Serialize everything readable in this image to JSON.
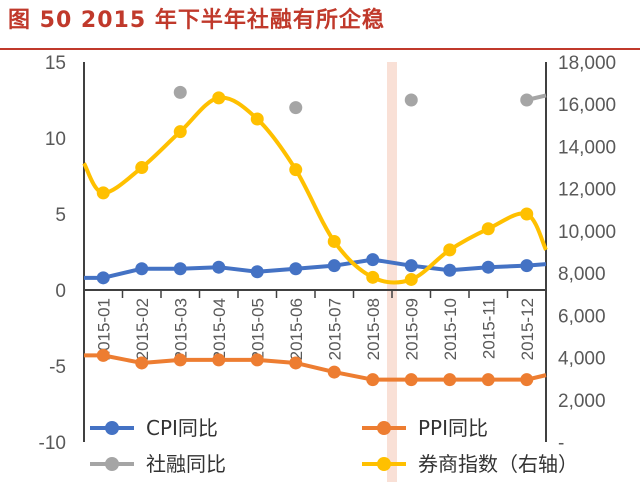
{
  "figure": {
    "title": "图 50   2015 年下半年社融有所企稳"
  },
  "chart_data": {
    "type": "line",
    "categories": [
      "2015-01",
      "2015-02",
      "2015-03",
      "2015-04",
      "2015-05",
      "2015-06",
      "2015-07",
      "2015-08",
      "2015-09",
      "2015-10",
      "2015-11",
      "2015-12"
    ],
    "ylim_left": [
      -10,
      15
    ],
    "yticks_left": [
      "15",
      "10",
      "5",
      "0",
      "-5",
      "-10"
    ],
    "ylim_right": [
      0,
      18000
    ],
    "yticks_right": [
      "18,000",
      "16,000",
      "14,000",
      "12,000",
      "10,000",
      "8,000",
      "6,000",
      "4,000",
      "2,000",
      "-"
    ],
    "highlight_category": "2015-08",
    "highlight_color": "#f7d6c8",
    "legend_position": "bottom",
    "series": [
      {
        "name": "CPI同比",
        "axis": "left",
        "color": "#4472c4",
        "smooth": false,
        "start": 0.8,
        "values": [
          0.8,
          1.4,
          1.4,
          1.5,
          1.2,
          1.4,
          1.6,
          2.0,
          1.6,
          1.3,
          1.5,
          1.6
        ],
        "end": 1.7
      },
      {
        "name": "PPI同比",
        "axis": "left",
        "color": "#ed7d31",
        "smooth": false,
        "start": -4.3,
        "values": [
          -4.3,
          -4.8,
          -4.6,
          -4.6,
          -4.6,
          -4.8,
          -5.4,
          -5.9,
          -5.9,
          -5.9,
          -5.9,
          -5.9
        ],
        "end": -5.6
      },
      {
        "name": "社融同比",
        "axis": "left",
        "color": "#a5a5a5",
        "smooth": false,
        "markers_only": true,
        "values": [
          null,
          null,
          13.0,
          null,
          null,
          12.0,
          null,
          null,
          12.5,
          null,
          null,
          12.5
        ],
        "end": 12.8
      },
      {
        "name": "券商指数（右轴）",
        "axis": "right",
        "color": "#ffc000",
        "smooth": true,
        "start": 13200,
        "values": [
          11800,
          13000,
          14700,
          16300,
          15300,
          12900,
          9500,
          7800,
          7700,
          9100,
          10100,
          10800
        ],
        "end": 9100
      }
    ]
  }
}
